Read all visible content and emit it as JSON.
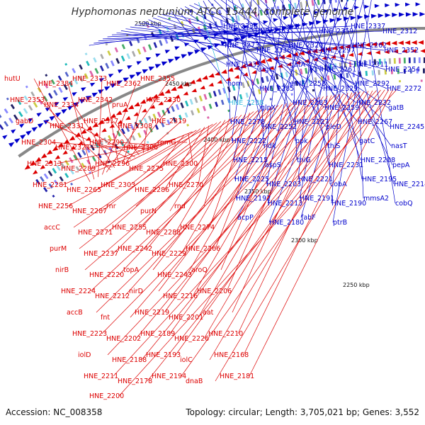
{
  "title": "Hyphomonas neptunium ATCC 15444, complete genome",
  "accession": "Accession: NC_008358",
  "summary": "Topology: circular; Length: 3,705,021 bp; Genes: 3,552",
  "colors": {
    "forward": "#0000cc",
    "reverse": "#dd0000",
    "backbone": "#888888",
    "highlight": "#33bbdd",
    "tickmark": "#33aa33"
  },
  "ticks": [
    "2500 kbp",
    "2450 kbp",
    "2400 kbp",
    "2350 kbp",
    "2300 kbp",
    "2250 kbp"
  ],
  "forward_labels": [
    "HNE_2338",
    "HNE_2363",
    "rpsI",
    "HNE_2359",
    "HNE_2337",
    "HNE_2312",
    "HNE_2273",
    "HNE_2336",
    "HNE_2320",
    "HNE_2297",
    "HNE_2262",
    "HNE_2352",
    "HNE_2335",
    "argC",
    "gatA",
    "HNE_2261",
    "HNE_2311",
    "HNE_2254",
    "hom",
    "HNE_2285",
    "HNE_2253",
    "HNE_2329",
    "HNE_2292",
    "HNE_2272",
    "HNE_2238",
    "glpX",
    "HNE_2283",
    "HNE_2259",
    "HNE_2232",
    "gatB",
    "HNE_2278",
    "HNE_2252",
    "HNE_2227",
    "pleD",
    "HNE_2267",
    "HNE_2245",
    "HNE_2222",
    "ndk",
    "ppk",
    "thiS",
    "gatC",
    "nasT",
    "HNE_2215",
    "aspS",
    "thiG",
    "HNE_2231",
    "HNE_2208",
    "pepA",
    "HNE_2225",
    "HNE_2203",
    "HNE_2221",
    "cobA",
    "HNE_2195",
    "HNE_2214",
    "HNE_2192",
    "HNE_2213",
    "HNE_2191",
    "HNE_2190",
    "mmsA2",
    "cobQ",
    "acpP",
    "HNE_2180",
    "fabF",
    "ptrB"
  ],
  "reverse_labels": [
    "hutU",
    "HNE_2384",
    "HNE_2373",
    "HNE_2362",
    "HNE_2355",
    "HNE_2353",
    "HNE_2334",
    "HNE_2342",
    "pruA",
    "HNE_2330",
    "gabD",
    "HNE_2331",
    "HNE_2317",
    "HNE_2308",
    "HNE_2319",
    "HNE_2304",
    "HNE_2321",
    "HNE_2290",
    "HNE_2306",
    "rpmG",
    "HNE_2313",
    "HNE_2289",
    "HNE_2296",
    "HNE_2275",
    "HNE_2300",
    "HNE_2281",
    "HNE_2265",
    "HNE_2303",
    "HNE_2286",
    "HNE_2270",
    "HNE_2256",
    "HNE_2287",
    "rnr",
    "purN",
    "rnd",
    "accC",
    "HNE_2271",
    "HNE_2255",
    "HNE_2288",
    "HNE_2274",
    "purM",
    "HNE_2237",
    "HNE_2242",
    "HNE_2229",
    "HNE_2266",
    "nirB",
    "HNE_2220",
    "topA",
    "HNE_2243",
    "aroQ",
    "HNE_2224",
    "HNE_2212",
    "nirD",
    "HNE_2216",
    "HNE_2206",
    "accB",
    "fnt",
    "HNE_2219",
    "HNE_2201",
    "aat",
    "HNE_2223",
    "HNE_2202",
    "HNE_2189",
    "HNE_2226",
    "HNE_2210",
    "iolD",
    "HNE_2188",
    "HNE_2193",
    "iolC",
    "HNE_2168",
    "HNE_2211",
    "HNE_2178",
    "HNE_2194",
    "dnaB",
    "HNE_2181",
    "HNE_2200"
  ]
}
